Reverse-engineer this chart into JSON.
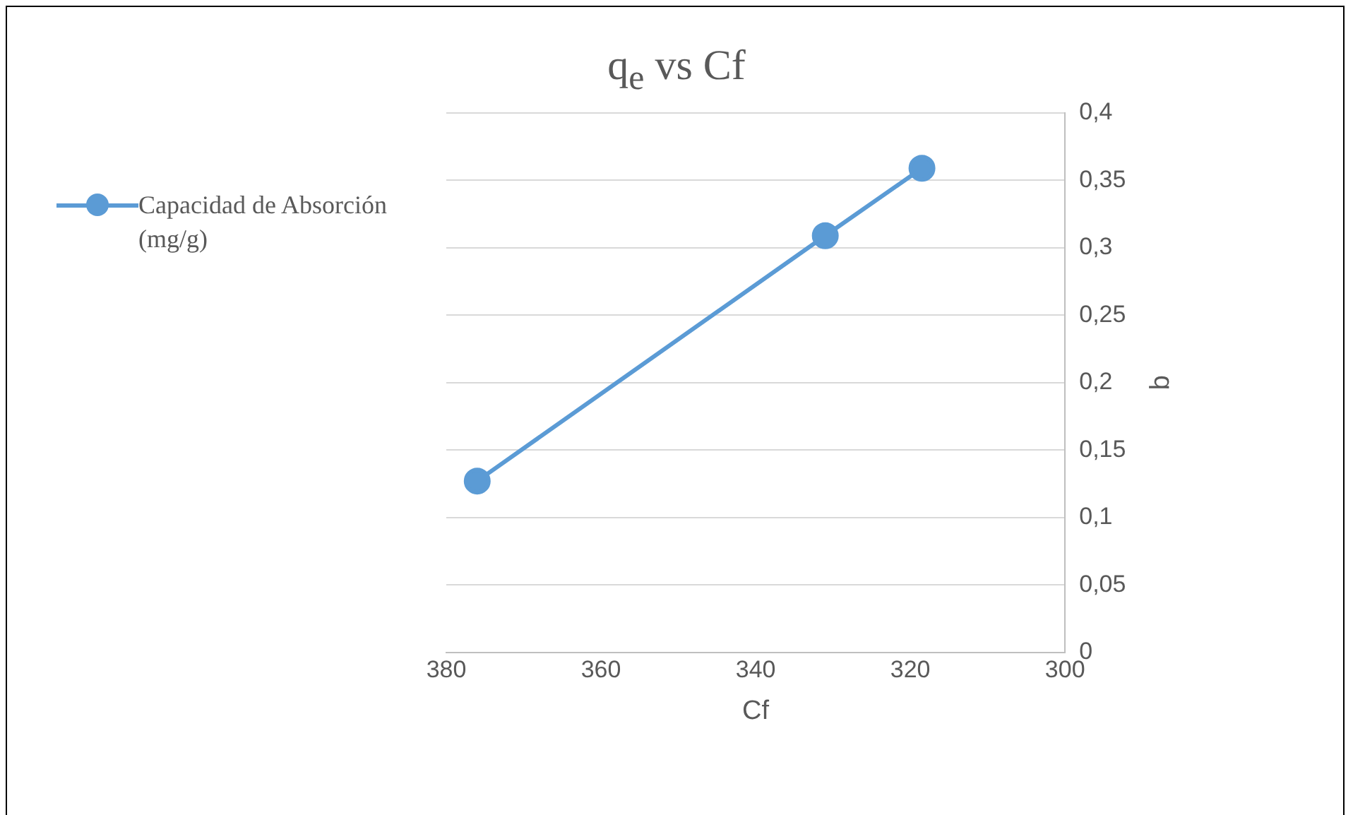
{
  "chart_data": {
    "type": "line",
    "title": "q$_{e}$ vs Cf",
    "xlabel": "Cf",
    "ylabel": "q",
    "series": [
      {
        "name": "Capacidad de Absorción (mg/g)",
        "color": "#5b9bd5",
        "x": [
          376,
          331,
          318.5
        ],
        "values": [
          0.127,
          0.309,
          0.359
        ]
      }
    ],
    "xlim": [
      380,
      300
    ],
    "xticks": [
      380,
      360,
      340,
      320,
      300
    ],
    "ylim": [
      0,
      0.4
    ],
    "yticks": [
      {
        "value": 0,
        "label": "0"
      },
      {
        "value": 0.05,
        "label": "0,05"
      },
      {
        "value": 0.1,
        "label": "0,1"
      },
      {
        "value": 0.15,
        "label": "0,15"
      },
      {
        "value": 0.2,
        "label": "0,2"
      },
      {
        "value": 0.25,
        "label": "0,25"
      },
      {
        "value": 0.3,
        "label": "0,3"
      },
      {
        "value": 0.35,
        "label": "0,35"
      },
      {
        "value": 0.4,
        "label": "0,4"
      }
    ],
    "grid": "y",
    "legend": "left",
    "marker": "circle",
    "line_style": "solid"
  }
}
